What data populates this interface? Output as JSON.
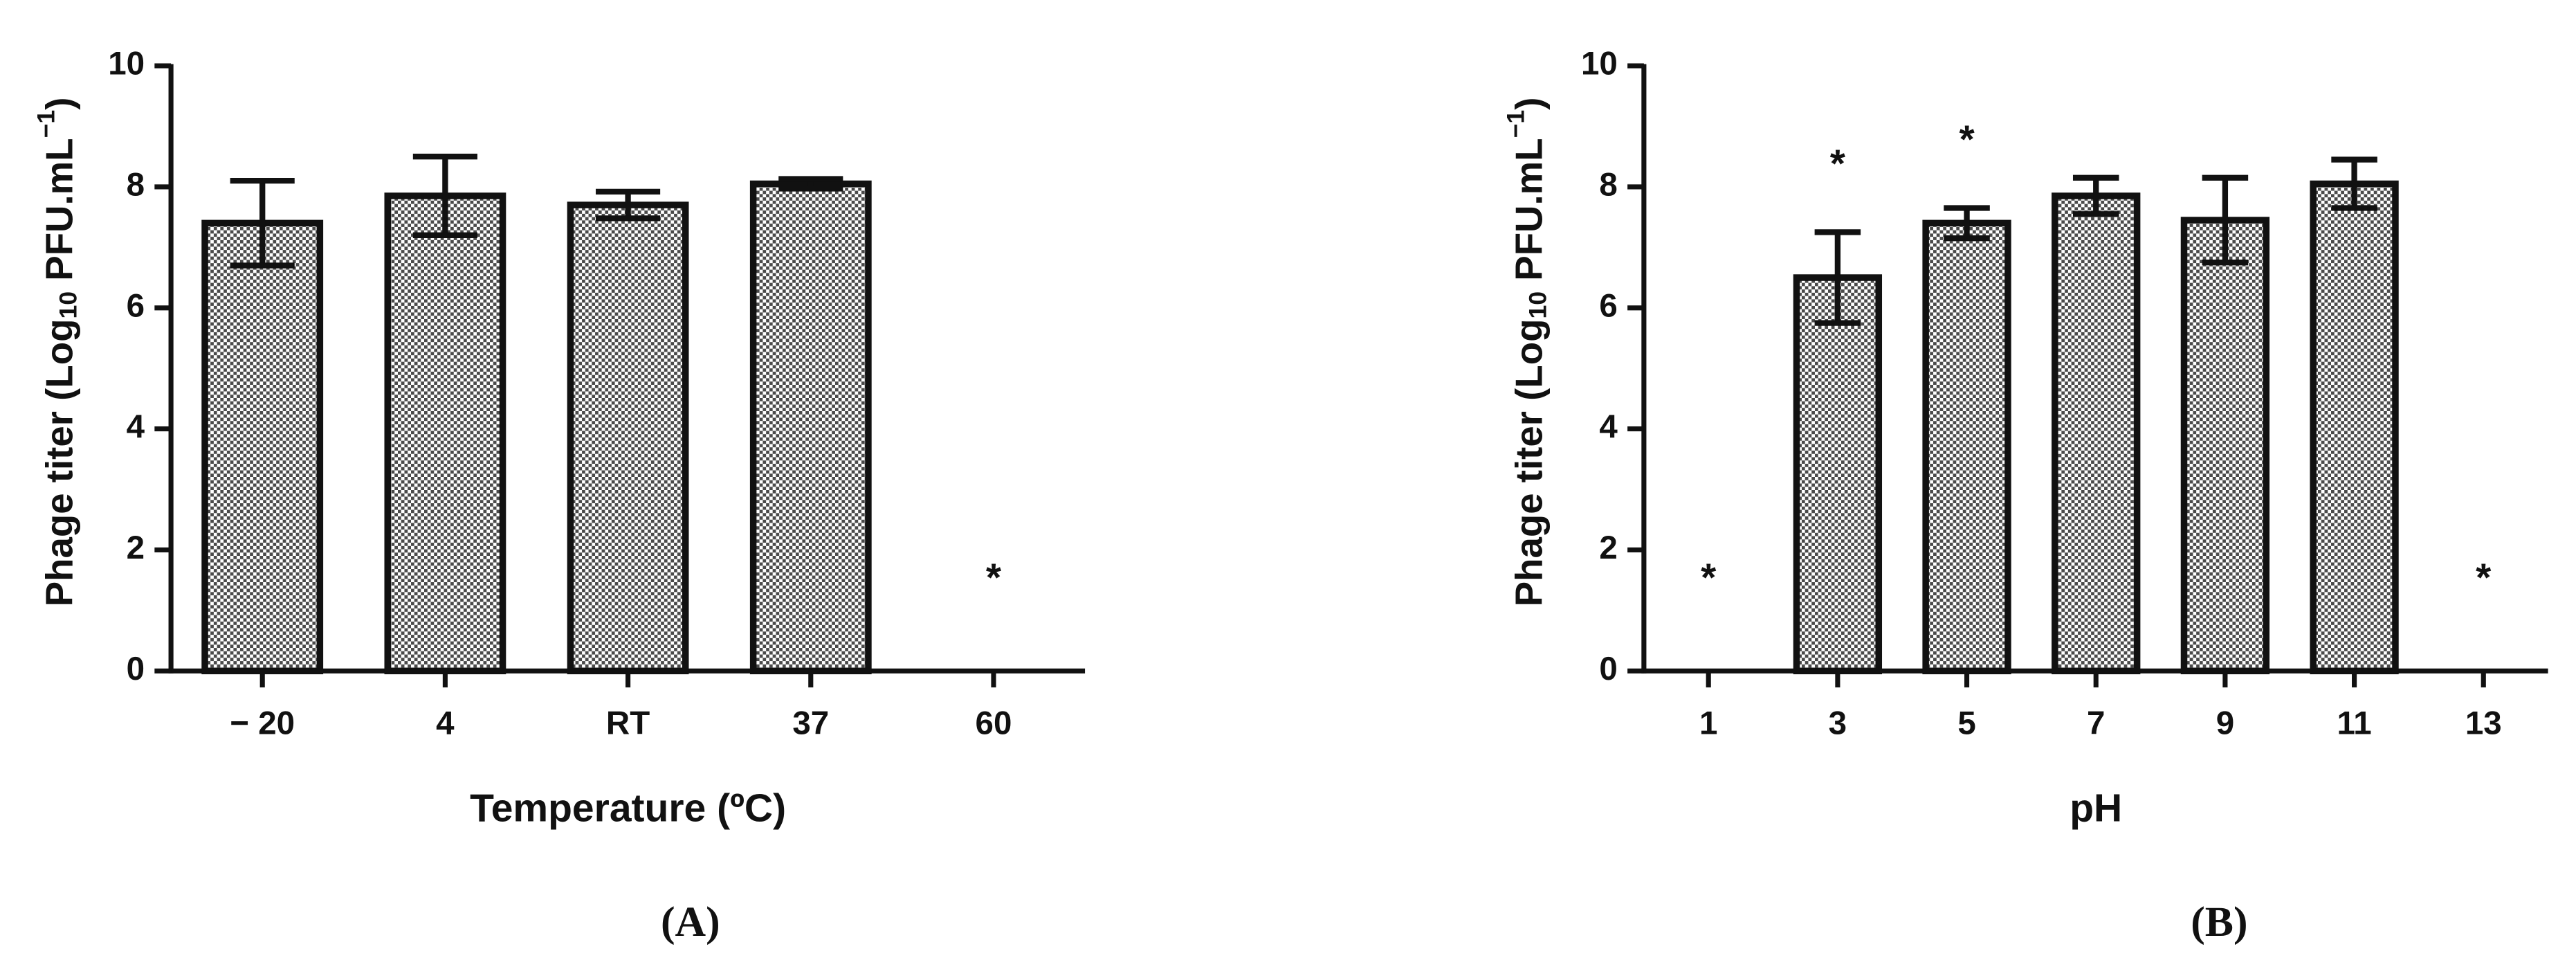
{
  "chart_data": [
    {
      "type": "bar",
      "panel_label": "(A)",
      "ylabel": [
        "Phage titer (Log",
        "10",
        " PFU.mL",
        "−1",
        ")"
      ],
      "xlabel": "Temperature (ºC)",
      "categories": [
        "− 20",
        "4",
        "RT",
        "37",
        "60"
      ],
      "values": [
        7.4,
        7.85,
        7.7,
        8.05,
        0
      ],
      "errors": [
        0.7,
        0.65,
        0.22,
        0.08,
        null
      ],
      "significance": [
        null,
        null,
        null,
        null,
        "*"
      ],
      "color": "#4a4a4a",
      "ylim": [
        0,
        10
      ],
      "yticks": [
        0,
        2,
        4,
        6,
        8,
        10
      ]
    },
    {
      "type": "bar",
      "panel_label": "(B)",
      "ylabel": [
        "Phage titer (Log",
        "10",
        " PFU.mL",
        "−1",
        ")"
      ],
      "xlabel": "pH",
      "categories": [
        "1",
        "3",
        "5",
        "7",
        "9",
        "11",
        "13"
      ],
      "values": [
        0,
        6.5,
        7.4,
        7.85,
        7.45,
        8.05,
        0
      ],
      "errors": [
        null,
        0.75,
        0.25,
        0.3,
        0.7,
        0.4,
        null
      ],
      "significance": [
        "*",
        "*",
        "*",
        null,
        null,
        null,
        "*"
      ],
      "color": "#4a4a4a",
      "ylim": [
        0,
        10
      ],
      "yticks": [
        0,
        2,
        4,
        6,
        8,
        10
      ]
    }
  ]
}
